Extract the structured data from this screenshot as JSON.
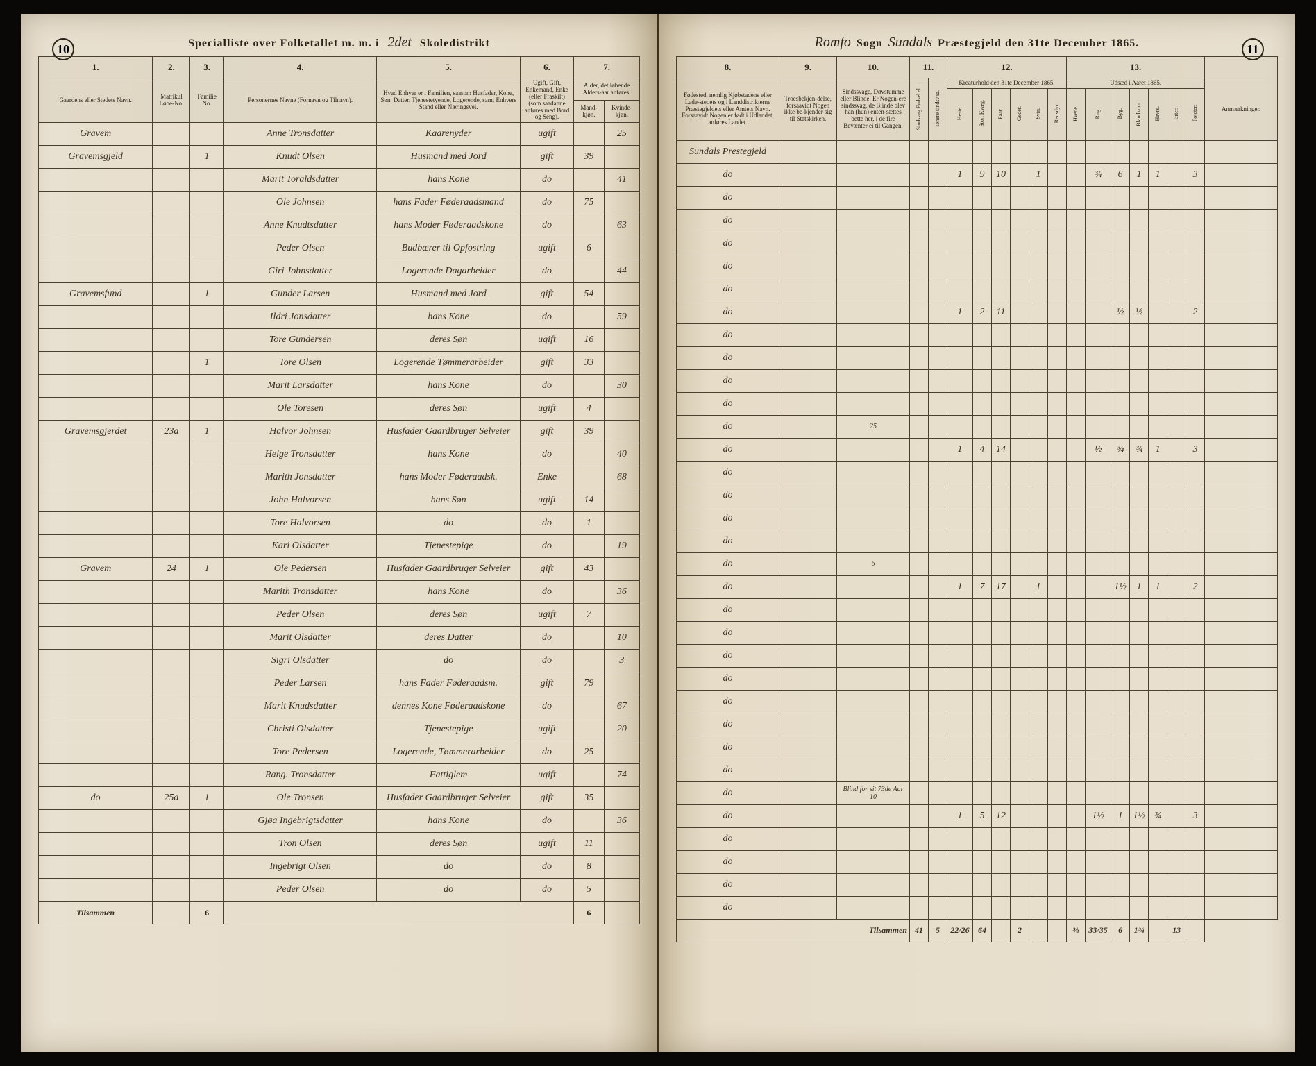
{
  "page_number_left": "10",
  "page_number_right": "11",
  "header_left": {
    "prefix": "Specialliste over Folketallet m. m. i",
    "script": "2det",
    "suffix": "Skoledistrikt"
  },
  "header_right": {
    "script1": "Romfo",
    "mid1": "Sogn",
    "script2": "Sundals",
    "suffix": "Præstegjeld den 31te December 1865."
  },
  "left_columns": {
    "nums": [
      "1.",
      "2.",
      "3.",
      "4.",
      "5.",
      "6.",
      "7."
    ],
    "labels": {
      "c1": "Gaardens eller Stedets Navn.",
      "c2": "Matrikul Løbe-No.",
      "c3": "Familie No.",
      "c4": "Personernes Navne (Fornavn og Tilnavn).",
      "c5": "Hvad Enhver er i Familien, saasom Husfader, Kone, Søn, Datter, Tjenestetyende, Logerende, samt Enhvers Stand eller Næringsvei.",
      "c6": "Ugift, Gift, Enkemand, Enke (eller Fraskilt) (som saadanne anføres med Bord og Seng).",
      "c7a": "Alder, det løbende Alders-aar anføres.",
      "c7b": "Mand-kjøn.",
      "c7c": "Kvinde-kjøn."
    }
  },
  "right_columns": {
    "nums": [
      "8.",
      "9.",
      "10.",
      "11.",
      "12.",
      "13."
    ],
    "labels": {
      "c8": "Fødested, nemlig Kjøbstadens eller Lade-stedets og i Landdistrikterne Præstegjeldets eller Amtets Navn. Forsaavidt Nogen er født i Udlandet, anføres Landet.",
      "c9": "Troesbekjen-delse, forsaavidt Nogen ikke be-kjender sig til Statskirken.",
      "c10": "Sindssvage, Døvstumme eller Blinde. Er Nogen-ere sindssvag, de Blinde blev han (hun) enten-sættes bette her, i de fire Bevænter ei til Gangen.",
      "c11a": "Sindsvag Fødsel el.",
      "c11b": "senere sindsvag.",
      "c12": "Kreaturhold den 31te December 1865.",
      "c12cols": [
        "Heste.",
        "Stort Kvæg.",
        "Faar.",
        "Geder.",
        "Svin.",
        "Rensdyr."
      ],
      "c13": "Udsæd i Aaret 1865.",
      "c13cols": [
        "Hvede.",
        "Rug.",
        "Byg.",
        "Blandkorn.",
        "Havre.",
        "Erter.",
        "Poteter."
      ],
      "c14": "Anmærkninger."
    }
  },
  "rows": [
    {
      "gaard": "Gravem",
      "mat": "",
      "fam": "",
      "navn": "Anne Tronsdatter",
      "stand": "Kaarenyder",
      "stat": "ugift",
      "m": "",
      "k": "25",
      "fod": "Sundals Prestegjeld",
      "note": "",
      "ls": [
        "",
        "",
        "",
        "",
        "",
        ""
      ],
      "us": [
        "",
        "",
        "",
        "",
        "",
        "",
        ""
      ]
    },
    {
      "gaard": "Gravemsgjeld",
      "mat": "",
      "fam": "1",
      "navn": "Knudt Olsen",
      "stand": "Husmand med Jord",
      "stat": "gift",
      "m": "39",
      "k": "",
      "fod": "do",
      "note": "",
      "ls": [
        "1",
        "9",
        "10",
        "",
        "1",
        ""
      ],
      "us": [
        "",
        "¾",
        "6",
        "1",
        "1",
        "",
        "3"
      ]
    },
    {
      "gaard": "",
      "mat": "",
      "fam": "",
      "navn": "Marit Toraldsdatter",
      "stand": "hans Kone",
      "stat": "do",
      "m": "",
      "k": "41",
      "fod": "do",
      "note": "",
      "ls": [
        "",
        "",
        "",
        "",
        "",
        ""
      ],
      "us": [
        "",
        "",
        "",
        "",
        "",
        "",
        ""
      ]
    },
    {
      "gaard": "",
      "mat": "",
      "fam": "",
      "navn": "Ole Johnsen",
      "stand": "hans Fader Føderaadsmand",
      "stat": "do",
      "m": "75",
      "k": "",
      "fod": "do",
      "note": "",
      "ls": [
        "",
        "",
        "",
        "",
        "",
        ""
      ],
      "us": [
        "",
        "",
        "",
        "",
        "",
        "",
        ""
      ]
    },
    {
      "gaard": "",
      "mat": "",
      "fam": "",
      "navn": "Anne Knudtsdatter",
      "stand": "hans Moder Føderaadskone",
      "stat": "do",
      "m": "",
      "k": "63",
      "fod": "do",
      "note": "",
      "ls": [
        "",
        "",
        "",
        "",
        "",
        ""
      ],
      "us": [
        "",
        "",
        "",
        "",
        "",
        "",
        ""
      ]
    },
    {
      "gaard": "",
      "mat": "",
      "fam": "",
      "navn": "Peder Olsen",
      "stand": "Budbærer til Opfostring",
      "stat": "ugift",
      "m": "6",
      "k": "",
      "fod": "do",
      "note": "",
      "ls": [
        "",
        "",
        "",
        "",
        "",
        ""
      ],
      "us": [
        "",
        "",
        "",
        "",
        "",
        "",
        ""
      ]
    },
    {
      "gaard": "",
      "mat": "",
      "fam": "",
      "navn": "Giri Johnsdatter",
      "stand": "Logerende Dagarbeider",
      "stat": "do",
      "m": "",
      "k": "44",
      "fod": "do",
      "note": "",
      "ls": [
        "",
        "",
        "",
        "",
        "",
        ""
      ],
      "us": [
        "",
        "",
        "",
        "",
        "",
        "",
        ""
      ]
    },
    {
      "gaard": "Gravemsfund",
      "mat": "",
      "fam": "1",
      "navn": "Gunder Larsen",
      "stand": "Husmand med Jord",
      "stat": "gift",
      "m": "54",
      "k": "",
      "fod": "do",
      "note": "",
      "ls": [
        "1",
        "2",
        "11",
        "",
        "",
        ""
      ],
      "us": [
        "",
        "",
        "½",
        "½",
        "",
        "",
        "2"
      ]
    },
    {
      "gaard": "",
      "mat": "",
      "fam": "",
      "navn": "Ildri Jonsdatter",
      "stand": "hans Kone",
      "stat": "do",
      "m": "",
      "k": "59",
      "fod": "do",
      "note": "",
      "ls": [
        "",
        "",
        "",
        "",
        "",
        ""
      ],
      "us": [
        "",
        "",
        "",
        "",
        "",
        "",
        ""
      ]
    },
    {
      "gaard": "",
      "mat": "",
      "fam": "",
      "navn": "Tore Gundersen",
      "stand": "deres Søn",
      "stat": "ugift",
      "m": "16",
      "k": "",
      "fod": "do",
      "note": "",
      "ls": [
        "",
        "",
        "",
        "",
        "",
        ""
      ],
      "us": [
        "",
        "",
        "",
        "",
        "",
        "",
        ""
      ]
    },
    {
      "gaard": "",
      "mat": "",
      "fam": "1",
      "navn": "Tore Olsen",
      "stand": "Logerende Tømmerarbeider",
      "stat": "gift",
      "m": "33",
      "k": "",
      "fod": "do",
      "note": "",
      "ls": [
        "",
        "",
        "",
        "",
        "",
        ""
      ],
      "us": [
        "",
        "",
        "",
        "",
        "",
        "",
        ""
      ]
    },
    {
      "gaard": "",
      "mat": "",
      "fam": "",
      "navn": "Marit Larsdatter",
      "stand": "hans Kone",
      "stat": "do",
      "m": "",
      "k": "30",
      "fod": "do",
      "note": "",
      "ls": [
        "",
        "",
        "",
        "",
        "",
        ""
      ],
      "us": [
        "",
        "",
        "",
        "",
        "",
        "",
        ""
      ]
    },
    {
      "gaard": "",
      "mat": "",
      "fam": "",
      "navn": "Ole Toresen",
      "stand": "deres Søn",
      "stat": "ugift",
      "m": "4",
      "k": "",
      "fod": "do",
      "note": "25",
      "ls": [
        "",
        "",
        "",
        "",
        "",
        ""
      ],
      "us": [
        "",
        "",
        "",
        "",
        "",
        "",
        ""
      ]
    },
    {
      "gaard": "Gravemsgjerdet",
      "mat": "23a",
      "fam": "1",
      "navn": "Halvor Johnsen",
      "stand": "Husfader Gaardbruger Selveier",
      "stat": "gift",
      "m": "39",
      "k": "",
      "fod": "do",
      "note": "",
      "ls": [
        "1",
        "4",
        "14",
        "",
        "",
        ""
      ],
      "us": [
        "",
        "½",
        "¾",
        "¾",
        "1",
        "",
        "3"
      ]
    },
    {
      "gaard": "",
      "mat": "",
      "fam": "",
      "navn": "Helge Tronsdatter",
      "stand": "hans Kone",
      "stat": "do",
      "m": "",
      "k": "40",
      "fod": "do",
      "note": "",
      "ls": [
        "",
        "",
        "",
        "",
        "",
        ""
      ],
      "us": [
        "",
        "",
        "",
        "",
        "",
        "",
        ""
      ]
    },
    {
      "gaard": "",
      "mat": "",
      "fam": "",
      "navn": "Marith Jonsdatter",
      "stand": "hans Moder Føderaadsk.",
      "stat": "Enke",
      "m": "",
      "k": "68",
      "fod": "do",
      "note": "",
      "ls": [
        "",
        "",
        "",
        "",
        "",
        ""
      ],
      "us": [
        "",
        "",
        "",
        "",
        "",
        "",
        ""
      ]
    },
    {
      "gaard": "",
      "mat": "",
      "fam": "",
      "navn": "John Halvorsen",
      "stand": "hans Søn",
      "stat": "ugift",
      "m": "14",
      "k": "",
      "fod": "do",
      "note": "",
      "ls": [
        "",
        "",
        "",
        "",
        "",
        ""
      ],
      "us": [
        "",
        "",
        "",
        "",
        "",
        "",
        ""
      ]
    },
    {
      "gaard": "",
      "mat": "",
      "fam": "",
      "navn": "Tore Halvorsen",
      "stand": "do",
      "stat": "do",
      "m": "1",
      "k": "",
      "fod": "do",
      "note": "",
      "ls": [
        "",
        "",
        "",
        "",
        "",
        ""
      ],
      "us": [
        "",
        "",
        "",
        "",
        "",
        "",
        ""
      ]
    },
    {
      "gaard": "",
      "mat": "",
      "fam": "",
      "navn": "Kari Olsdatter",
      "stand": "Tjenestepige",
      "stat": "do",
      "m": "",
      "k": "19",
      "fod": "do",
      "note": "6",
      "ls": [
        "",
        "",
        "",
        "",
        "",
        ""
      ],
      "us": [
        "",
        "",
        "",
        "",
        "",
        "",
        ""
      ]
    },
    {
      "gaard": "Gravem",
      "mat": "24",
      "fam": "1",
      "navn": "Ole Pedersen",
      "stand": "Husfader Gaardbruger Selveier",
      "stat": "gift",
      "m": "43",
      "k": "",
      "fod": "do",
      "note": "",
      "ls": [
        "1",
        "7",
        "17",
        "",
        "1",
        ""
      ],
      "us": [
        "",
        "",
        "1½",
        "1",
        "1",
        "",
        "2"
      ]
    },
    {
      "gaard": "",
      "mat": "",
      "fam": "",
      "navn": "Marith Tronsdatter",
      "stand": "hans Kone",
      "stat": "do",
      "m": "",
      "k": "36",
      "fod": "do",
      "note": "",
      "ls": [
        "",
        "",
        "",
        "",
        "",
        ""
      ],
      "us": [
        "",
        "",
        "",
        "",
        "",
        "",
        ""
      ]
    },
    {
      "gaard": "",
      "mat": "",
      "fam": "",
      "navn": "Peder Olsen",
      "stand": "deres Søn",
      "stat": "ugift",
      "m": "7",
      "k": "",
      "fod": "do",
      "note": "",
      "ls": [
        "",
        "",
        "",
        "",
        "",
        ""
      ],
      "us": [
        "",
        "",
        "",
        "",
        "",
        "",
        ""
      ]
    },
    {
      "gaard": "",
      "mat": "",
      "fam": "",
      "navn": "Marit Olsdatter",
      "stand": "deres Datter",
      "stat": "do",
      "m": "",
      "k": "10",
      "fod": "do",
      "note": "",
      "ls": [
        "",
        "",
        "",
        "",
        "",
        ""
      ],
      "us": [
        "",
        "",
        "",
        "",
        "",
        "",
        ""
      ]
    },
    {
      "gaard": "",
      "mat": "",
      "fam": "",
      "navn": "Sigri Olsdatter",
      "stand": "do",
      "stat": "do",
      "m": "",
      "k": "3",
      "fod": "do",
      "note": "",
      "ls": [
        "",
        "",
        "",
        "",
        "",
        ""
      ],
      "us": [
        "",
        "",
        "",
        "",
        "",
        "",
        ""
      ]
    },
    {
      "gaard": "",
      "mat": "",
      "fam": "",
      "navn": "Peder Larsen",
      "stand": "hans Fader Føderaadsm.",
      "stat": "gift",
      "m": "79",
      "k": "",
      "fod": "do",
      "note": "",
      "ls": [
        "",
        "",
        "",
        "",
        "",
        ""
      ],
      "us": [
        "",
        "",
        "",
        "",
        "",
        "",
        ""
      ]
    },
    {
      "gaard": "",
      "mat": "",
      "fam": "",
      "navn": "Marit Knudsdatter",
      "stand": "dennes Kone Føderaadskone",
      "stat": "do",
      "m": "",
      "k": "67",
      "fod": "do",
      "note": "",
      "ls": [
        "",
        "",
        "",
        "",
        "",
        ""
      ],
      "us": [
        "",
        "",
        "",
        "",
        "",
        "",
        ""
      ]
    },
    {
      "gaard": "",
      "mat": "",
      "fam": "",
      "navn": "Christi Olsdatter",
      "stand": "Tjenestepige",
      "stat": "ugift",
      "m": "",
      "k": "20",
      "fod": "do",
      "note": "",
      "ls": [
        "",
        "",
        "",
        "",
        "",
        ""
      ],
      "us": [
        "",
        "",
        "",
        "",
        "",
        "",
        ""
      ]
    },
    {
      "gaard": "",
      "mat": "",
      "fam": "",
      "navn": "Tore Pedersen",
      "stand": "Logerende, Tømmerarbeider",
      "stat": "do",
      "m": "25",
      "k": "",
      "fod": "do",
      "note": "",
      "ls": [
        "",
        "",
        "",
        "",
        "",
        ""
      ],
      "us": [
        "",
        "",
        "",
        "",
        "",
        "",
        ""
      ]
    },
    {
      "gaard": "",
      "mat": "",
      "fam": "",
      "navn": "Rang. Tronsdatter",
      "stand": "Fattiglem",
      "stat": "ugift",
      "m": "",
      "k": "74",
      "fod": "do",
      "note": "Blind for sit 73de Aar 10",
      "ls": [
        "",
        "",
        "",
        "",
        "",
        ""
      ],
      "us": [
        "",
        "",
        "",
        "",
        "",
        "",
        ""
      ]
    },
    {
      "gaard": "do",
      "mat": "25a",
      "fam": "1",
      "navn": "Ole Tronsen",
      "stand": "Husfader Gaardbruger Selveier",
      "stat": "gift",
      "m": "35",
      "k": "",
      "fod": "do",
      "note": "",
      "ls": [
        "1",
        "5",
        "12",
        "",
        "",
        ""
      ],
      "us": [
        "",
        "1½",
        "1",
        "1½",
        "¾",
        "",
        "3"
      ]
    },
    {
      "gaard": "",
      "mat": "",
      "fam": "",
      "navn": "Gjøa Ingebrigtsdatter",
      "stand": "hans Kone",
      "stat": "do",
      "m": "",
      "k": "36",
      "fod": "do",
      "note": "",
      "ls": [
        "",
        "",
        "",
        "",
        "",
        ""
      ],
      "us": [
        "",
        "",
        "",
        "",
        "",
        "",
        ""
      ]
    },
    {
      "gaard": "",
      "mat": "",
      "fam": "",
      "navn": "Tron Olsen",
      "stand": "deres Søn",
      "stat": "ugift",
      "m": "11",
      "k": "",
      "fod": "do",
      "note": "",
      "ls": [
        "",
        "",
        "",
        "",
        "",
        ""
      ],
      "us": [
        "",
        "",
        "",
        "",
        "",
        "",
        ""
      ]
    },
    {
      "gaard": "",
      "mat": "",
      "fam": "",
      "navn": "Ingebrigt Olsen",
      "stand": "do",
      "stat": "do",
      "m": "8",
      "k": "",
      "fod": "do",
      "note": "",
      "ls": [
        "",
        "",
        "",
        "",
        "",
        ""
      ],
      "us": [
        "",
        "",
        "",
        "",
        "",
        "",
        ""
      ]
    },
    {
      "gaard": "",
      "mat": "",
      "fam": "",
      "navn": "Peder Olsen",
      "stand": "do",
      "stat": "do",
      "m": "5",
      "k": "",
      "fod": "do",
      "note": "",
      "ls": [
        "",
        "",
        "",
        "",
        "",
        ""
      ],
      "us": [
        "",
        "",
        "",
        "",
        "",
        "",
        ""
      ]
    }
  ],
  "footer_left": {
    "label": "Tilsammen",
    "fam": "6",
    "a": "",
    "b": "6"
  },
  "footer_right": {
    "label": "Tilsammen",
    "vals": [
      "41",
      "5",
      "22/26",
      "64",
      "",
      "2",
      "",
      "",
      "⅜",
      "33/35",
      "6",
      "1¾",
      "",
      "13"
    ]
  }
}
